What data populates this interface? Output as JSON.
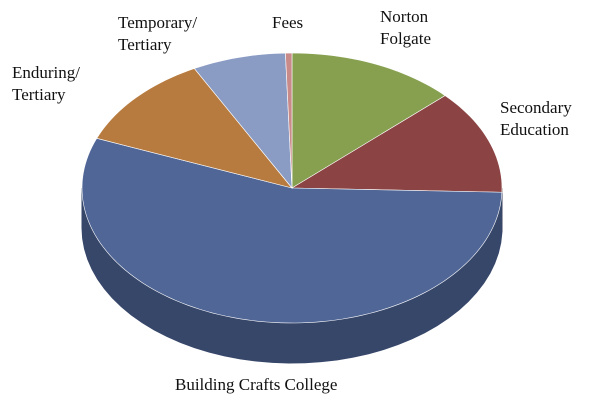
{
  "chart_data": {
    "type": "pie3d",
    "categories": [
      "Norton Folgate",
      "Secondary Education",
      "Building Crafts College",
      "Enduring/ Tertiary",
      "Temporary/ Tertiary",
      "Fees"
    ],
    "values": [
      13,
      12.5,
      55.5,
      11.3,
      7.2,
      0.5
    ],
    "colors": [
      "#86a04f",
      "#8b4343",
      "#4f6697",
      "#b87b3f",
      "#8b9cc4",
      "#c98a8a"
    ]
  }
}
